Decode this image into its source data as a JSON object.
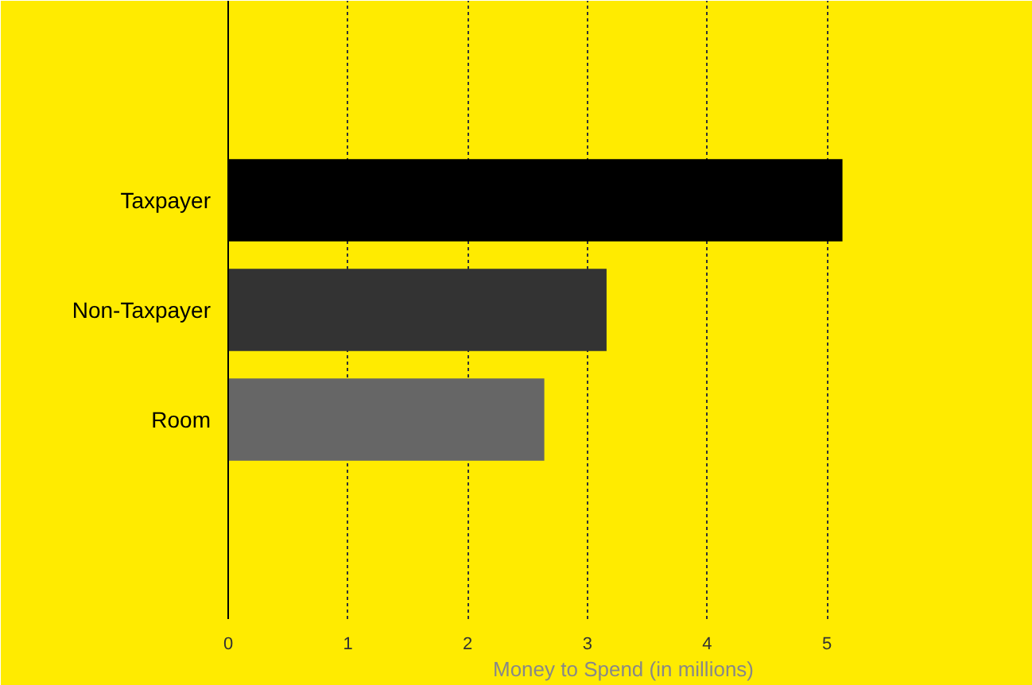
{
  "chart_data": {
    "type": "bar",
    "orientation": "horizontal",
    "categories": [
      "Taxpayer",
      "Non-Taxpayer",
      "Room"
    ],
    "values": [
      5.13,
      3.16,
      2.64
    ],
    "colors": [
      "#000000",
      "#333333",
      "#666666"
    ],
    "xlabel": "Money to Spend (in millions)",
    "xlim": [
      0,
      6.6
    ],
    "xticks": [
      0,
      1,
      2,
      3,
      4,
      5
    ],
    "grid": "x",
    "legend": false
  }
}
